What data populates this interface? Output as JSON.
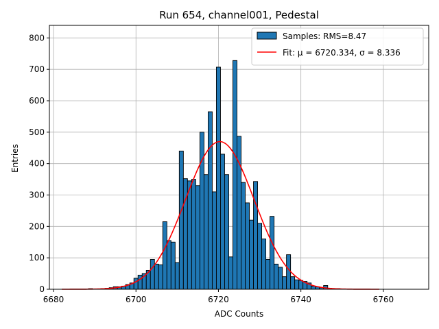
{
  "chart_data": {
    "type": "bar",
    "title": "Run 654, channel001, Pedestal",
    "xlabel": "ADC Counts",
    "ylabel": "Entries",
    "xlim": [
      6679,
      6771
    ],
    "ylim": [
      0,
      840
    ],
    "xticks": [
      6680,
      6700,
      6720,
      6740,
      6760
    ],
    "yticks": [
      0,
      100,
      200,
      300,
      400,
      500,
      600,
      700,
      800
    ],
    "grid": true,
    "legend_position": "top-right",
    "bin_width": 1,
    "series": [
      {
        "name": "Samples: RMS=8.47",
        "kind": "histogram",
        "color": "#1f77b4",
        "edgecolor": "#000000",
        "x": [
          6689,
          6690,
          6691,
          6692,
          6693,
          6694,
          6695,
          6696,
          6697,
          6698,
          6699,
          6700,
          6701,
          6702,
          6703,
          6704,
          6705,
          6706,
          6707,
          6708,
          6709,
          6710,
          6711,
          6712,
          6713,
          6714,
          6715,
          6716,
          6717,
          6718,
          6719,
          6720,
          6721,
          6722,
          6723,
          6724,
          6725,
          6726,
          6727,
          6728,
          6729,
          6730,
          6731,
          6732,
          6733,
          6734,
          6735,
          6736,
          6737,
          6738,
          6739,
          6740,
          6741,
          6742,
          6743,
          6744,
          6745,
          6746,
          6747,
          6748,
          6749,
          6750
        ],
        "values": [
          2,
          1,
          1,
          2,
          3,
          5,
          8,
          8,
          10,
          15,
          20,
          35,
          45,
          50,
          60,
          95,
          80,
          78,
          215,
          155,
          150,
          85,
          440,
          352,
          345,
          350,
          330,
          500,
          365,
          565,
          310,
          707,
          430,
          365,
          103,
          728,
          487,
          340,
          275,
          220,
          343,
          210,
          160,
          95,
          232,
          80,
          70,
          40,
          110,
          40,
          30,
          28,
          25,
          20,
          10,
          8,
          5,
          12,
          3,
          2,
          2,
          1
        ]
      },
      {
        "name": "Fit: μ = 6720.334, σ = 8.336",
        "kind": "line",
        "color": "#ff0000",
        "mu": 6720.334,
        "sigma": 8.336,
        "amplitude": 470,
        "x_range": [
          6682,
          6759
        ]
      }
    ]
  }
}
